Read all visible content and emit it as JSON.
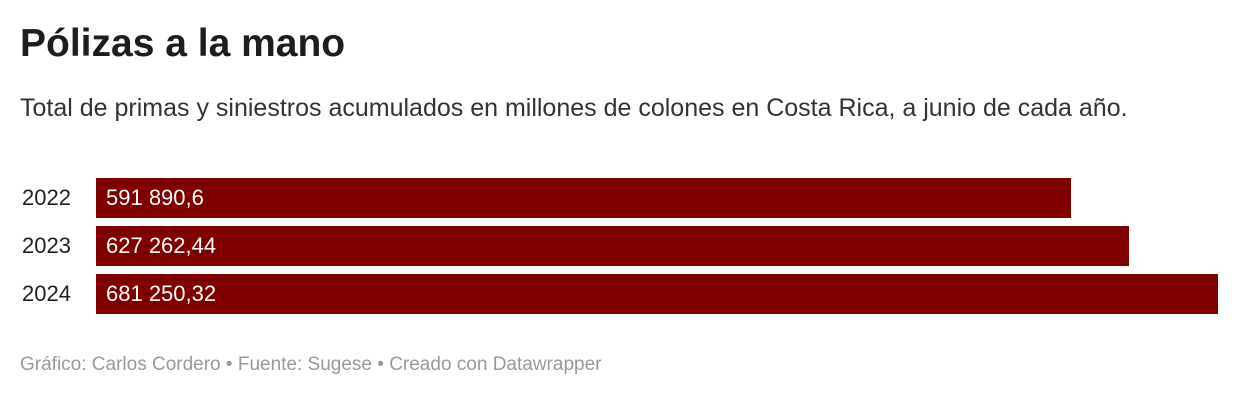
{
  "chart_data": {
    "type": "bar",
    "title": "Pólizas a la mano",
    "subtitle": "Total de primas y siniestros acumulados en millones de colones en Costa Rica, a junio de cada año.",
    "categories": [
      "2022",
      "2023",
      "2024"
    ],
    "values": [
      591890.6,
      627262.44,
      681250.32
    ],
    "value_labels": [
      "591 890,6",
      "627 262,44",
      "681 250,32"
    ],
    "color": "#7f0000",
    "footer": "Gráfico: Carlos Cordero • Fuente: Sugese • Creado con Datawrapper"
  }
}
